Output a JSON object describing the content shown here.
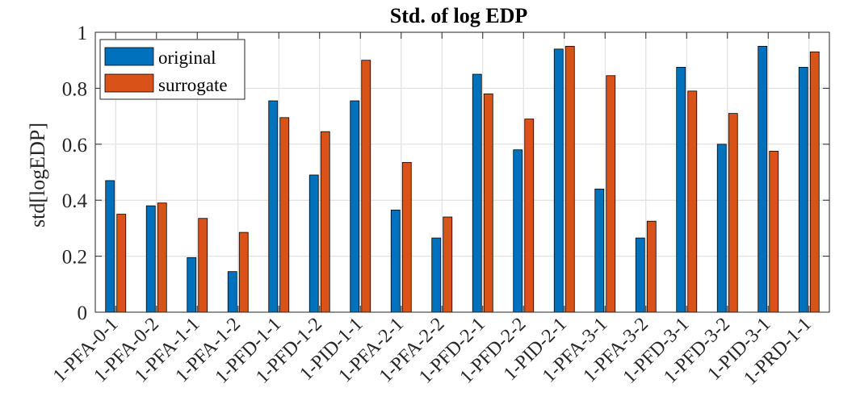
{
  "chart_data": {
    "type": "bar",
    "title": "Std. of log EDP",
    "xlabel": "",
    "ylabel": "std[logEDP]",
    "categories": [
      "1-PFA-0-1",
      "1-PFA-0-2",
      "1-PFA-1-1",
      "1-PFA-1-2",
      "1-PFD-1-1",
      "1-PFD-1-2",
      "1-PID-1-1",
      "1-PFA-2-1",
      "1-PFA-2-2",
      "1-PFD-2-1",
      "1-PFD-2-2",
      "1-PID-2-1",
      "1-PFA-3-1",
      "1-PFA-3-2",
      "1-PFD-3-1",
      "1-PFD-3-2",
      "1-PID-3-1",
      "1-PRD-1-1"
    ],
    "series": [
      {
        "name": "original",
        "color": "#0072BD",
        "values": [
          0.47,
          0.38,
          0.195,
          0.145,
          0.755,
          0.49,
          0.755,
          0.365,
          0.265,
          0.85,
          0.58,
          0.94,
          0.44,
          0.265,
          0.875,
          0.6,
          0.95,
          0.875
        ]
      },
      {
        "name": "surrogate",
        "color": "#D95319",
        "values": [
          0.35,
          0.39,
          0.335,
          0.285,
          0.695,
          0.645,
          0.9,
          0.535,
          0.34,
          0.78,
          0.69,
          0.95,
          0.845,
          0.325,
          0.79,
          0.71,
          0.575,
          0.93
        ]
      }
    ],
    "ylim": [
      0,
      1
    ],
    "yticks": [
      "0",
      "0.2",
      "0.4",
      "0.6",
      "0.8",
      "1"
    ],
    "grid": true,
    "legend_position": "top-left"
  }
}
